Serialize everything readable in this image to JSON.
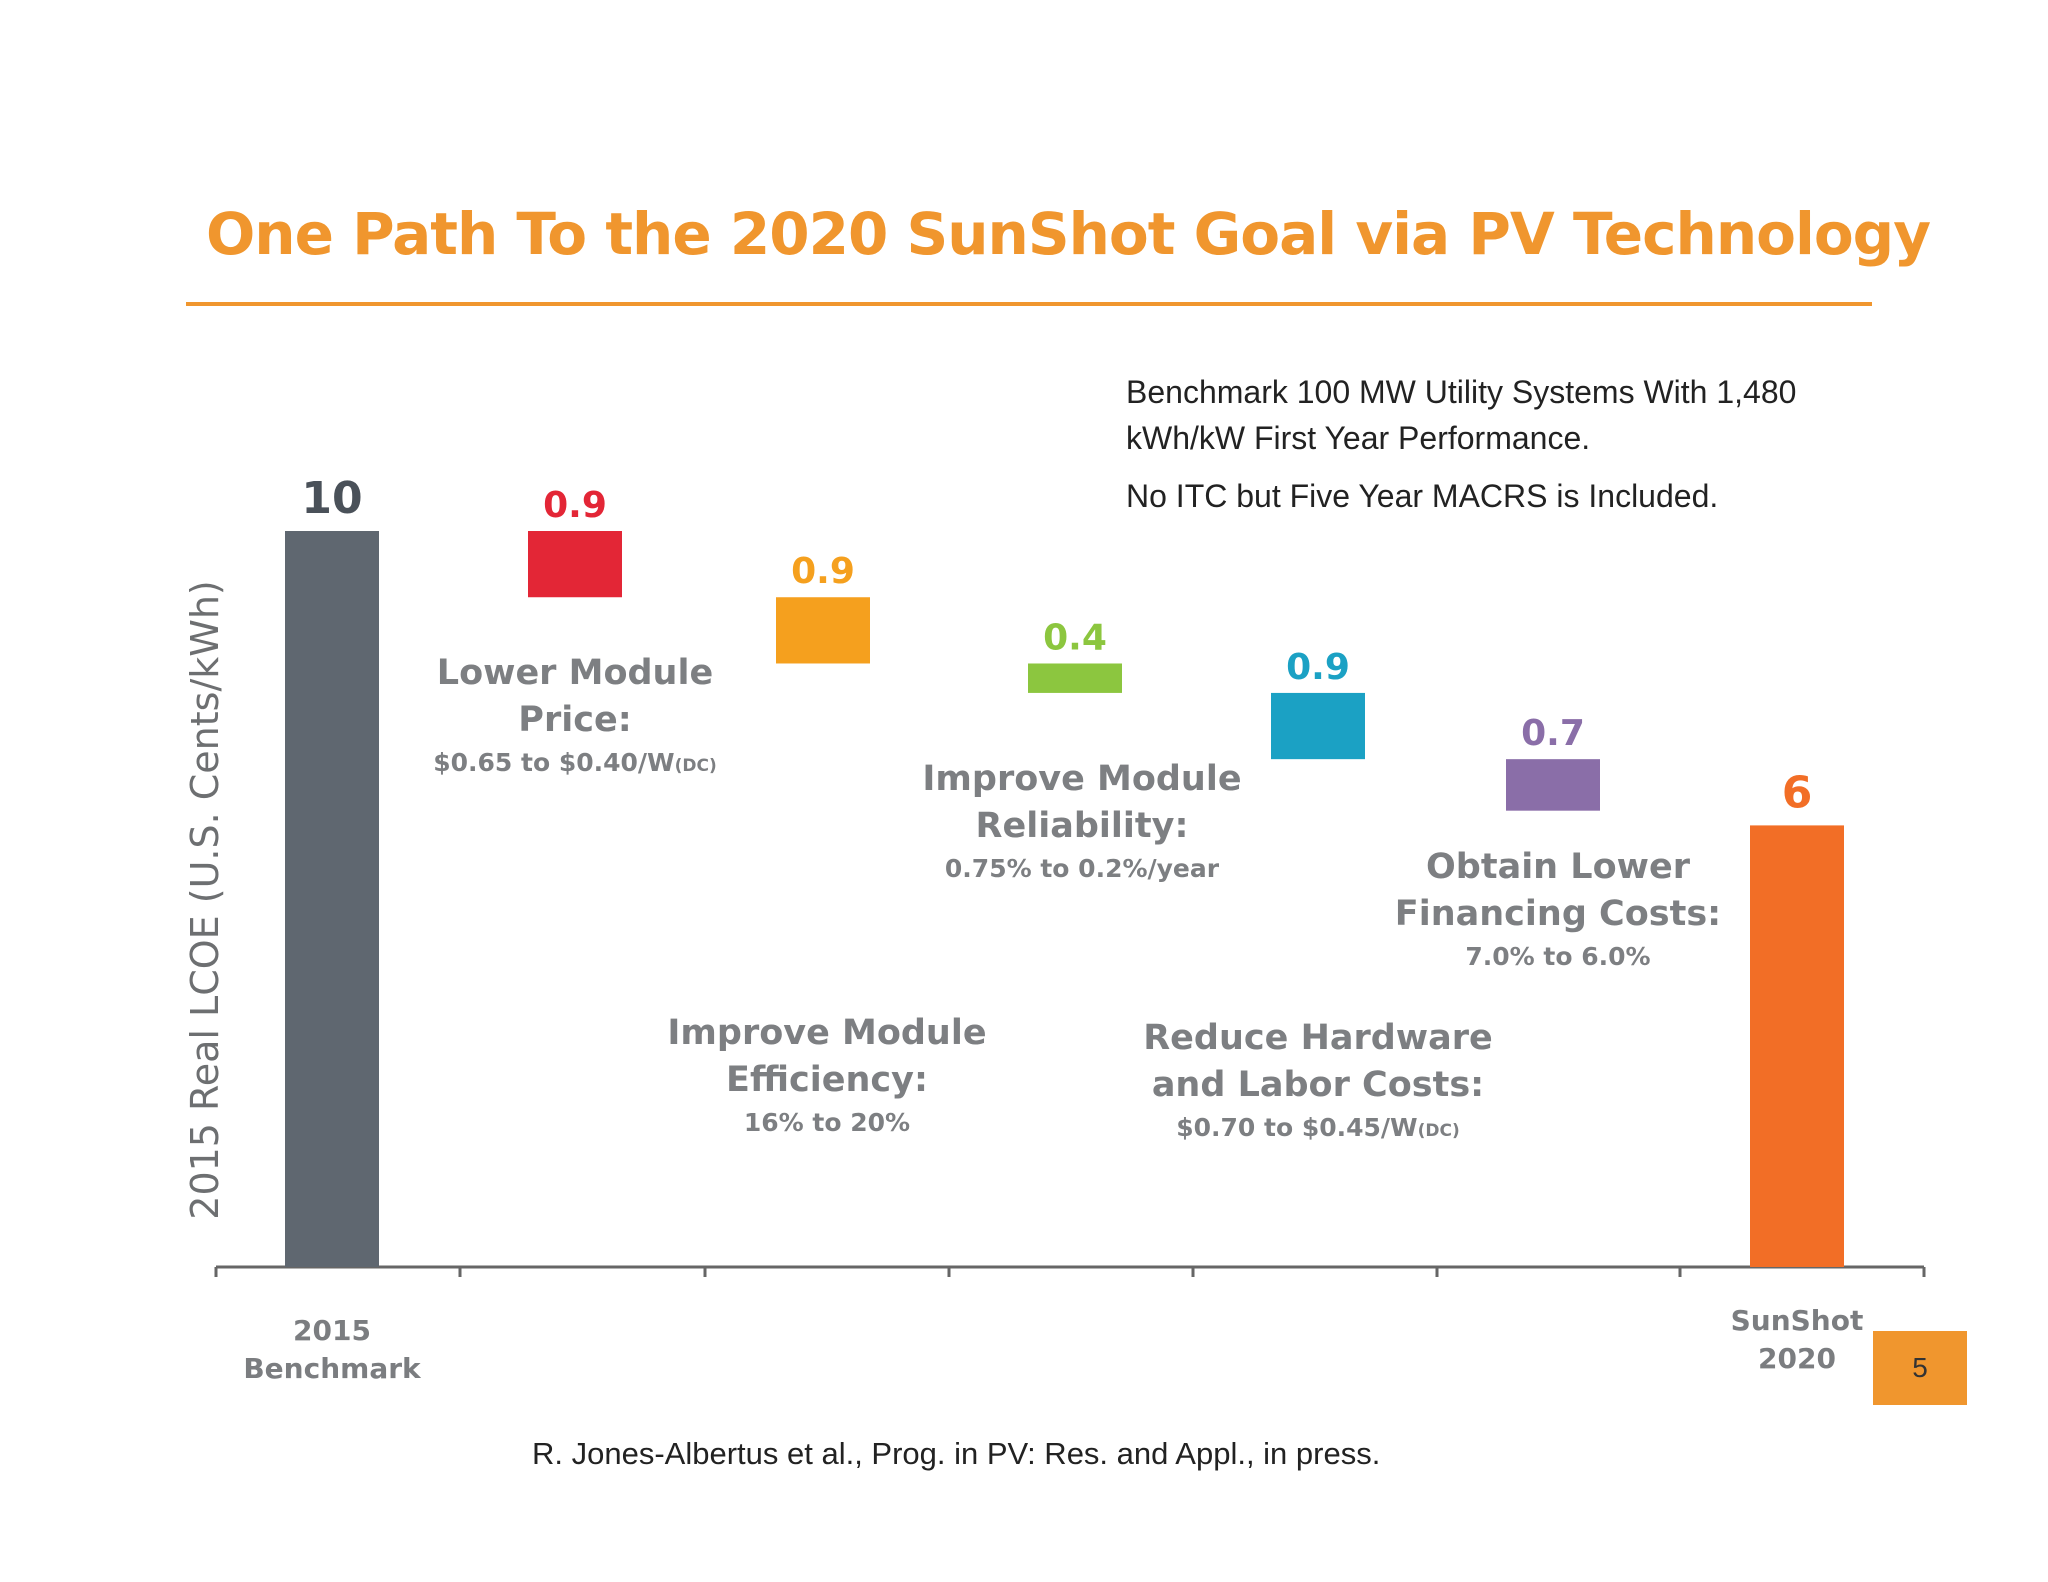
{
  "title": "One Path To the 2020 SunShot Goal via PV Technology",
  "notes": {
    "line1": "Benchmark 100 MW Utility Systems With 1,480",
    "line2": "kWh/kW First Year Performance.",
    "line3": "No ITC but Five Year MACRS is Included."
  },
  "citation": "R. Jones-Albertus et al., Prog. in PV: Res. and Appl., in press.",
  "page_number": "5",
  "chart_data": {
    "type": "bar",
    "subtype": "waterfall",
    "ylabel": "2015 Real LCOE (U.S. Cents/kWh)",
    "ylim": [
      0,
      10
    ],
    "grid": false,
    "legend": "none",
    "bars": [
      {
        "kind": "total",
        "value": 10,
        "label": "10",
        "category_line1": "2015",
        "category_line2": "Benchmark",
        "color": "#5f6770"
      },
      {
        "kind": "decrease",
        "value": 0.9,
        "label": "0.9",
        "color": "#e32636",
        "annotation": {
          "title1": "Lower Module",
          "title2": "Price:",
          "detail": "$0.65 to $0.40/W",
          "detail_sub": "(DC)"
        }
      },
      {
        "kind": "decrease",
        "value": 0.9,
        "label": "0.9",
        "color": "#f5a01e",
        "annotation": {
          "title1": "Improve Module",
          "title2": "Efficiency:",
          "detail": "16% to 20%",
          "detail_sub": ""
        }
      },
      {
        "kind": "decrease",
        "value": 0.4,
        "label": "0.4",
        "color": "#8cc63f",
        "annotation": {
          "title1": "Improve Module",
          "title2": "Reliability:",
          "detail": "0.75% to 0.2%/year",
          "detail_sub": ""
        }
      },
      {
        "kind": "decrease",
        "value": 0.9,
        "label": "0.9",
        "color": "#1ba1c4",
        "annotation": {
          "title1": "Reduce Hardware",
          "title2": "and Labor Costs:",
          "detail": "$0.70 to $0.45/W",
          "detail_sub": "(DC)"
        }
      },
      {
        "kind": "decrease",
        "value": 0.7,
        "label": "0.7",
        "color": "#8a6ea8",
        "annotation": {
          "title1": "Obtain Lower",
          "title2": "Financing Costs:",
          "detail": "7.0% to 6.0%",
          "detail_sub": ""
        }
      },
      {
        "kind": "total",
        "value": 6,
        "label": "6",
        "category_line1": "SunShot",
        "category_line2": "2020",
        "color": "#f26e26"
      }
    ]
  }
}
